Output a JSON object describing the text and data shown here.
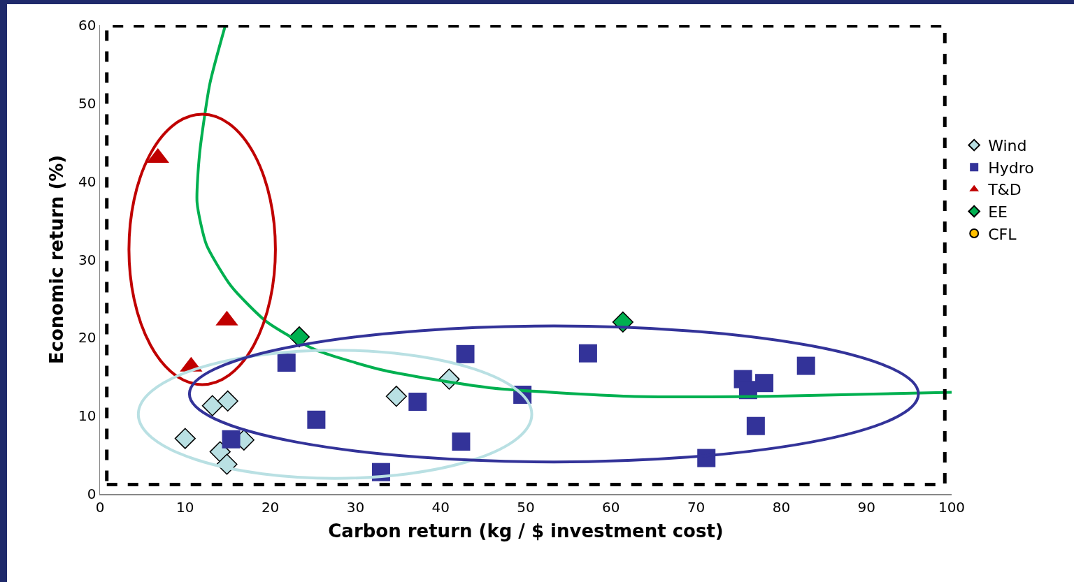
{
  "chart_data": {
    "type": "scatter",
    "xlabel": "Carbon return (kg / $ investment cost)",
    "ylabel": "Economic return (%)",
    "xlim": [
      0,
      100
    ],
    "xticks": [
      0,
      10,
      20,
      30,
      40,
      50,
      60,
      70,
      80,
      90,
      100
    ],
    "ylim": [
      0,
      60
    ],
    "yticks": [
      0,
      10,
      20,
      30,
      40,
      50,
      60
    ],
    "grid": false,
    "legend": "right",
    "series": [
      {
        "name": "Wind",
        "color": "#b9e0e3",
        "marker": "diamond",
        "x": [
          13.2,
          15.0,
          10.0,
          16.9,
          14.1,
          14.9,
          34.8,
          41.0
        ],
        "values": [
          11.3,
          11.9,
          7.1,
          6.9,
          5.4,
          3.8,
          12.5,
          14.7
        ]
      },
      {
        "name": "Hydro",
        "color": "#333399",
        "marker": "square",
        "x": [
          21.9,
          25.4,
          15.4,
          33.0,
          42.9,
          37.3,
          42.4,
          49.6,
          57.3,
          75.5,
          78.0,
          76.1,
          82.9,
          77.0,
          71.2
        ],
        "values": [
          16.8,
          9.5,
          7.0,
          2.8,
          17.9,
          11.8,
          6.7,
          12.7,
          18.0,
          14.7,
          14.2,
          13.3,
          16.4,
          8.7,
          4.6
        ]
      },
      {
        "name": "T&D",
        "color": "#c00000",
        "marker": "triangle",
        "x": [
          6.8,
          14.9,
          10.7
        ],
        "values": [
          43.0,
          22.2,
          16.3
        ]
      },
      {
        "name": "EE",
        "color": "#00b050",
        "marker": "diamond",
        "x": [
          23.4,
          61.4
        ],
        "values": [
          20.1,
          22.0
        ]
      },
      {
        "name": "CFL",
        "color": "#ffc000",
        "marker": "circle",
        "x": [
          null
        ],
        "values": [
          null
        ]
      },
      {
        "type": "line",
        "color": "#00b050",
        "marker": "none",
        "x": [
          14.7,
          12.9,
          11.7,
          11.4,
          12.5,
          15.4,
          19.5,
          25.2,
          33.4,
          45.7,
          62.2,
          78.6,
          100
        ],
        "values": [
          59.9,
          52.5,
          43.6,
          37.3,
          31.9,
          26.6,
          22.1,
          18.5,
          15.8,
          13.6,
          12.5,
          12.5,
          13.0
        ]
      }
    ]
  }
}
